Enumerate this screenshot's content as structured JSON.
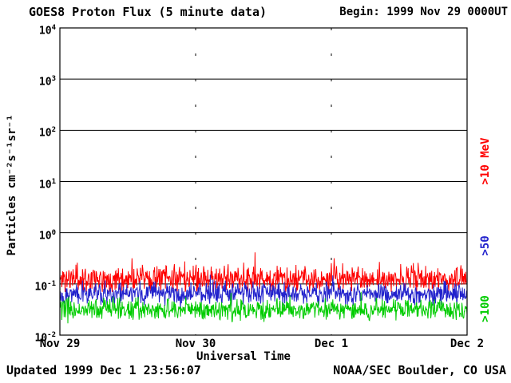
{
  "header": {
    "title": "GOES8 Proton Flux (5 minute data)",
    "begin_label": "Begin: 1999 Nov 29 0000UT"
  },
  "footer": {
    "updated": "Updated 1999 Dec 1 23:56:07",
    "credit": "NOAA/SEC Boulder, CO USA"
  },
  "chart_data": {
    "type": "line",
    "title": "GOES8 Proton Flux (5 minute data)",
    "xlabel": "Universal Time",
    "ylabel": "Particles cm⁻²s⁻¹sr⁻¹",
    "y_scale": "log",
    "ylim": [
      0.01,
      10000
    ],
    "y_tick_exponents": [
      4,
      3,
      2,
      1,
      0,
      -1,
      -2
    ],
    "x_ticks": [
      "Nov 29",
      "Nov 30",
      "Dec 1",
      "Dec 2"
    ],
    "x_range_days": 3,
    "points_per_day": 288,
    "grid": "horizontal-solid-per-decade, vertical-dashed-per-day",
    "frame_color": "#000000",
    "series": [
      {
        "name": ">10 MeV",
        "color": "#ff0000",
        "median_flux": 0.13,
        "min_flux": 0.07,
        "max_flux": 0.55,
        "log10_base": -0.9,
        "log10_jitter": 0.38,
        "spike_chance": 0.03,
        "spike_mag": 0.35,
        "seed": 11
      },
      {
        "name": ">50",
        "color": "#2222cc",
        "median_flux": 0.065,
        "min_flux": 0.033,
        "max_flux": 0.16,
        "log10_base": -1.19,
        "log10_jitter": 0.3,
        "spike_chance": 0.02,
        "spike_mag": 0.25,
        "seed": 22
      },
      {
        "name": ">100",
        "color": "#00cc00",
        "median_flux": 0.032,
        "min_flux": 0.013,
        "max_flux": 0.07,
        "log10_base": -1.5,
        "log10_jitter": 0.3,
        "spike_chance": 0.02,
        "spike_mag": 0.25,
        "seed": 33
      }
    ]
  }
}
